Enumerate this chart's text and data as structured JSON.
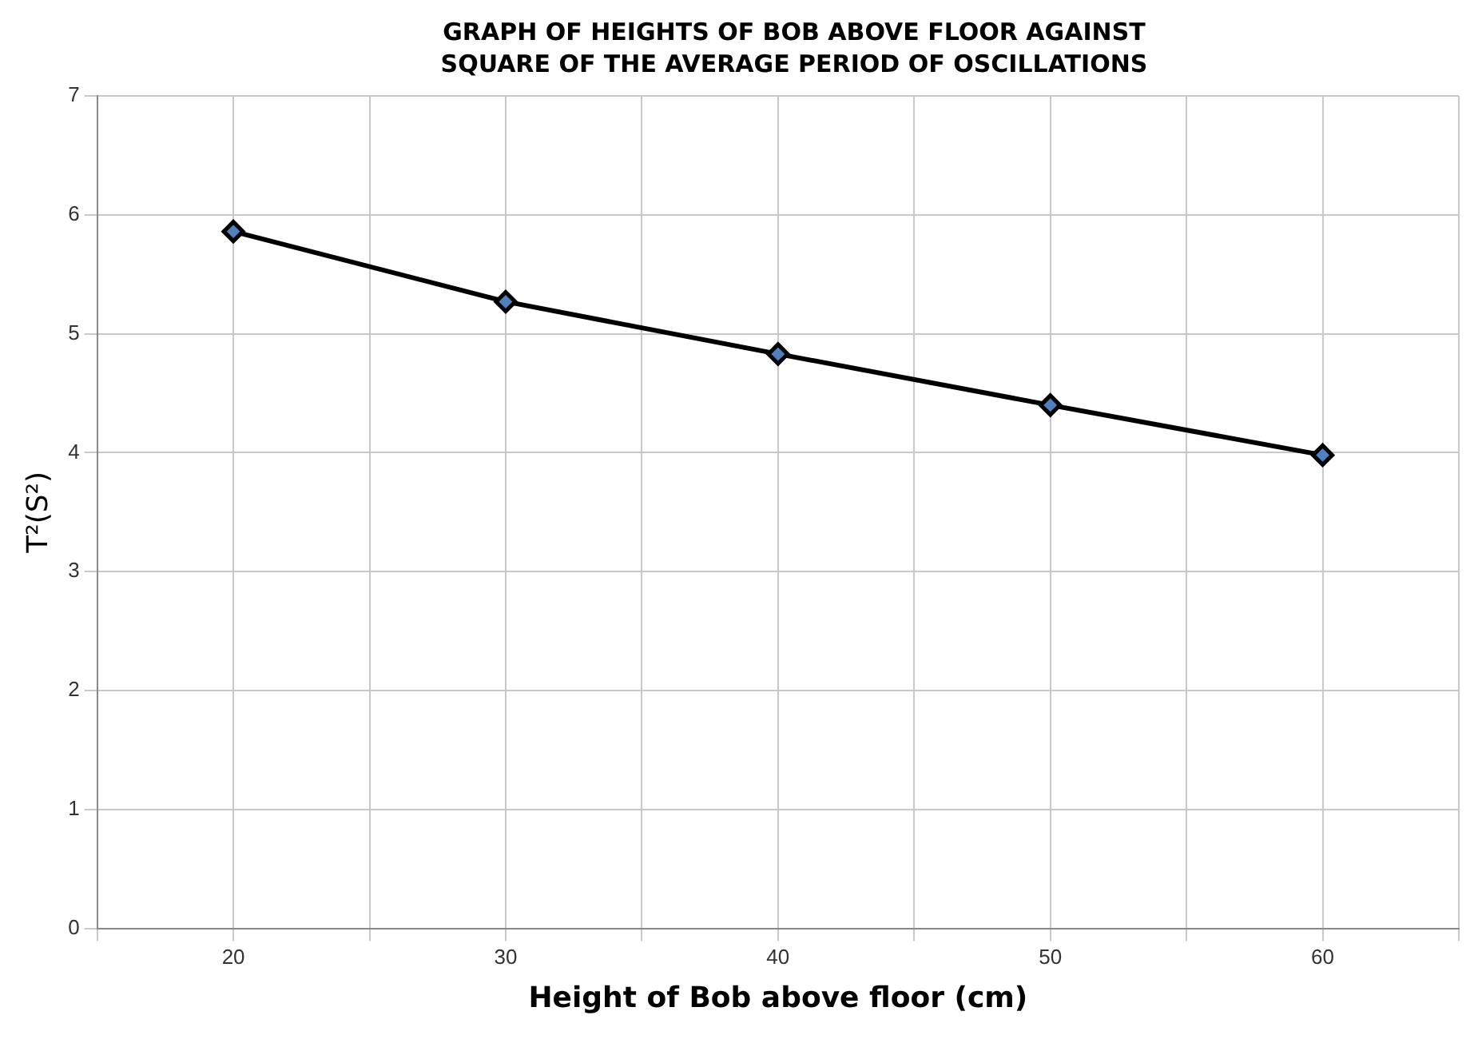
{
  "chart_data": {
    "type": "line",
    "title": "GRAPH OF HEIGHTS OF BOB ABOVE FLOOR AGAINST SQUARE OF THE AVERAGE PERIOD OF OSCILLATIONS",
    "xlabel": "Height of Bob above floor (cm)",
    "ylabel": "T²(S²)",
    "x": [
      20,
      30,
      40,
      50,
      60
    ],
    "series": [
      {
        "color": "#000000",
        "values": [
          5.86,
          5.27,
          4.83,
          4.4,
          3.98
        ]
      }
    ],
    "xlim": [
      15,
      65
    ],
    "xticks": [
      {
        "value": 15,
        "label": null
      },
      20,
      {
        "value": 25,
        "label": null
      },
      30,
      {
        "value": 35,
        "label": null
      },
      40,
      {
        "value": 45,
        "label": null
      },
      50,
      {
        "value": 55,
        "label": null
      },
      60,
      {
        "value": 65,
        "label": null
      }
    ],
    "ylim": [
      0,
      7
    ],
    "yticks": [
      0,
      1,
      2,
      3,
      4,
      5,
      6,
      7
    ],
    "grid": true,
    "legend": false,
    "marker": "diamond",
    "line_style": "solid"
  }
}
